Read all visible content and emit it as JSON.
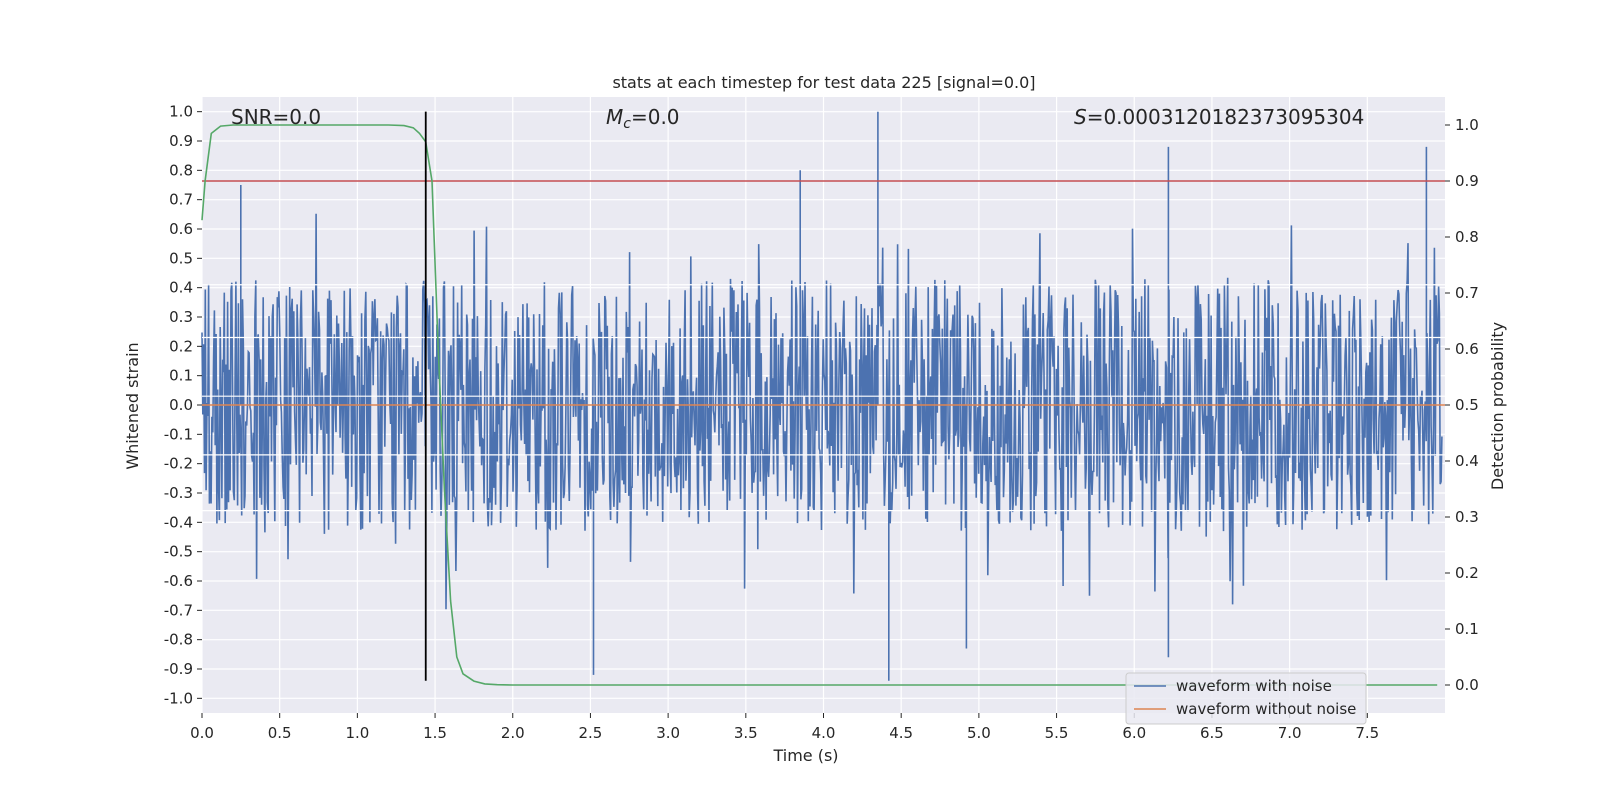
{
  "chart_data": {
    "type": "line",
    "title": "stats at each timestep for test data 225 [signal=0.0]",
    "xlabel": "Time (s)",
    "ylabel": "Whitened strain",
    "y2label": "Detection probability",
    "xlim": [
      0.0,
      8.0
    ],
    "ylim": [
      -1.05,
      1.05
    ],
    "y2lim": [
      -0.05,
      1.05
    ],
    "grid": true,
    "legend_location": "lower-right",
    "x_ticks": [
      0.0,
      0.5,
      1.0,
      1.5,
      2.0,
      2.5,
      3.0,
      3.5,
      4.0,
      4.5,
      5.0,
      5.5,
      6.0,
      6.5,
      7.0,
      7.5
    ],
    "x_tick_labels": [
      "0.0",
      "0.5",
      "1.0",
      "1.5",
      "2.0",
      "2.5",
      "3.0",
      "3.5",
      "4.0",
      "4.5",
      "5.0",
      "5.5",
      "6.0",
      "6.5",
      "7.0",
      "7.5"
    ],
    "y_ticks": [
      1.0,
      0.9,
      0.8,
      0.7,
      0.6,
      0.5,
      0.4,
      0.3,
      0.2,
      0.1,
      0.0,
      -0.1,
      -0.2,
      -0.3,
      -0.4,
      -0.5,
      -0.6,
      -0.7,
      -0.8,
      -0.9,
      -1.0
    ],
    "y_tick_labels": [
      "1.0",
      "0.9",
      "0.8",
      "0.7",
      "0.6",
      "0.5",
      "0.4",
      "0.3",
      "0.2",
      "0.1",
      "0.0",
      "-0.1",
      "-0.2",
      "-0.3",
      "-0.4",
      "-0.5",
      "-0.6",
      "-0.7",
      "-0.8",
      "-0.9",
      "-1.0"
    ],
    "y2_ticks": [
      1.0,
      0.9,
      0.8,
      0.7,
      0.6,
      0.5,
      0.4,
      0.3,
      0.2,
      0.1,
      0.0
    ],
    "y2_tick_labels": [
      "1.0",
      "0.9",
      "0.8",
      "0.7",
      "0.6",
      "0.5",
      "0.4",
      "0.3",
      "0.2",
      "0.1",
      "0.0"
    ],
    "annotations": {
      "snr": "SNR=0.0",
      "mc_symbol": "M",
      "mc_subscript": "c",
      "mc_value": "=0.0",
      "s_symbol": "S",
      "s_value": "=0.0003120182373095304"
    },
    "series": [
      {
        "name": "waveform with noise",
        "axis": "left",
        "color": "#4c72b0",
        "description": "dense whitened noise samples spanning 0-8 s",
        "typical_range": [
          -0.45,
          0.45
        ],
        "peaks": [
          {
            "x": 4.35,
            "y": 1.0
          },
          {
            "x": 4.42,
            "y": -0.94
          },
          {
            "x": 6.22,
            "y": 0.88
          },
          {
            "x": 7.88,
            "y": 0.88
          },
          {
            "x": 2.52,
            "y": -0.92
          },
          {
            "x": 6.22,
            "y": -0.86
          },
          {
            "x": 3.85,
            "y": 0.8
          },
          {
            "x": 0.25,
            "y": 0.75
          },
          {
            "x": 4.92,
            "y": -0.83
          }
        ]
      },
      {
        "name": "waveform without noise",
        "axis": "left",
        "color": "#dd8452",
        "x": [
          0.0,
          8.0
        ],
        "y": [
          0.0,
          0.0
        ]
      },
      {
        "name": "detection probability",
        "axis": "right",
        "color": "#55a868",
        "x": [
          0.0,
          0.02,
          0.06,
          0.12,
          0.2,
          0.4,
          0.8,
          1.0,
          1.2,
          1.3,
          1.36,
          1.4,
          1.44,
          1.48,
          1.52,
          1.56,
          1.6,
          1.64,
          1.68,
          1.75,
          1.82,
          1.9,
          2.0,
          2.5,
          3.0,
          4.0,
          5.0,
          6.0,
          7.0,
          7.95
        ],
        "y": [
          0.83,
          0.9,
          0.985,
          0.998,
          1.0,
          1.0,
          1.0,
          1.0,
          1.0,
          0.999,
          0.995,
          0.985,
          0.97,
          0.9,
          0.6,
          0.35,
          0.15,
          0.05,
          0.02,
          0.007,
          0.002,
          0.0005,
          0.0,
          0.0,
          0.0,
          0.0,
          0.0,
          0.0,
          0.0,
          0.0
        ]
      },
      {
        "name": "detection threshold",
        "axis": "right",
        "color": "#c44e52",
        "x": [
          0.0,
          8.0
        ],
        "y": [
          0.9,
          0.9
        ]
      },
      {
        "name": "marker time",
        "axis": "left",
        "color": "#000000",
        "x": [
          1.44,
          1.44
        ],
        "y": [
          -0.94,
          1.0
        ]
      }
    ],
    "legend": [
      "waveform with noise",
      "waveform without noise"
    ]
  }
}
